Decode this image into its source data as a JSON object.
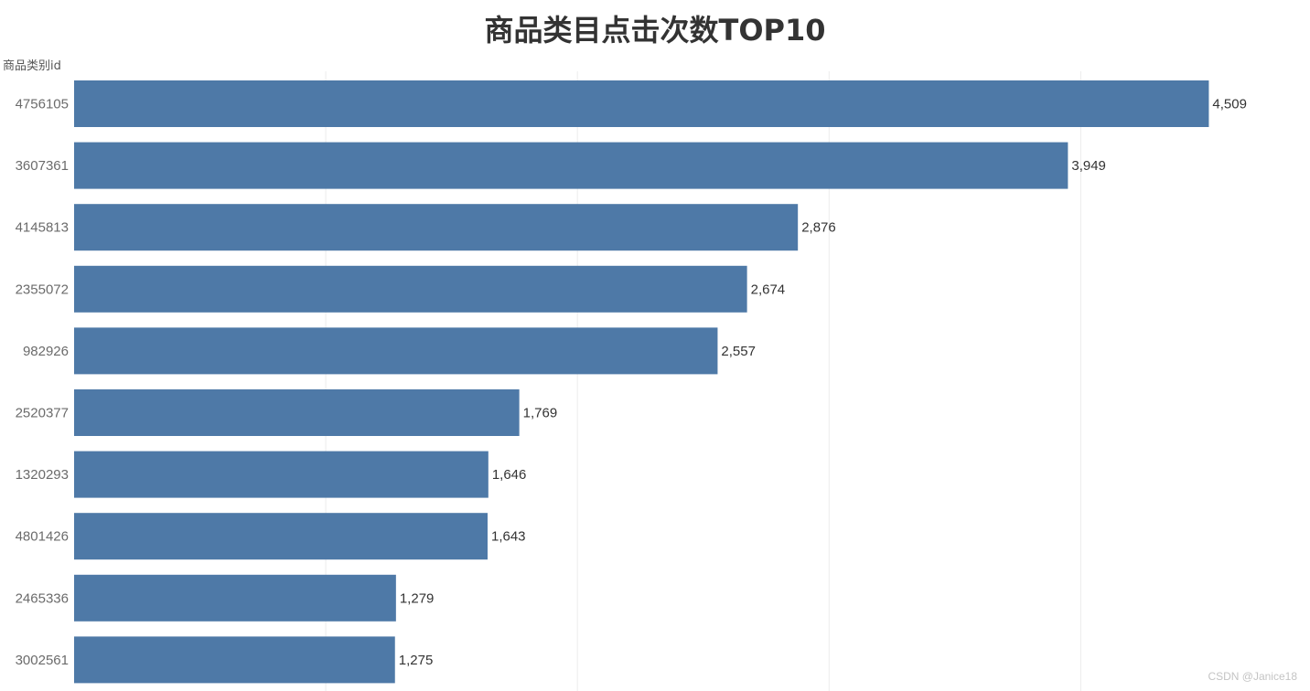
{
  "chart_data": {
    "type": "bar",
    "orientation": "horizontal",
    "title": "商品类目点击次数TOP10",
    "ylabel": "商品类别id",
    "xlabel": "",
    "categories": [
      "4756105",
      "3607361",
      "4145813",
      "2355072",
      "982926",
      "2520377",
      "1320293",
      "4801426",
      "2465336",
      "3002561"
    ],
    "values": [
      4509,
      3949,
      2876,
      2674,
      2557,
      1769,
      1646,
      1643,
      1279,
      1275
    ],
    "value_labels": [
      "4,509",
      "3,949",
      "2,876",
      "2,674",
      "2,557",
      "1,769",
      "1,646",
      "1,643",
      "1,279",
      "1,275"
    ],
    "xlim": [
      0,
      5000
    ],
    "grid": true,
    "bar_color": "#4e79a7"
  },
  "watermark": "CSDN @Janice18"
}
